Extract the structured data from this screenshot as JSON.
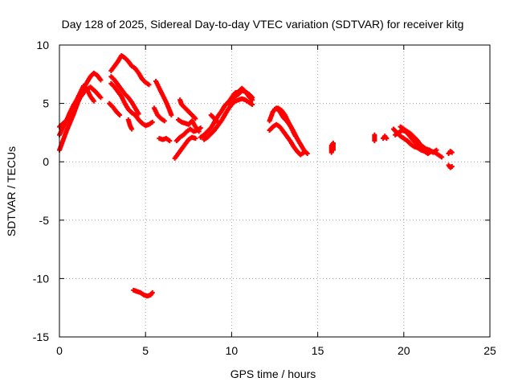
{
  "chart_data": {
    "type": "scatter",
    "title": "Day 128 of 2025, Sidereal Day-to-day VTEC variation (SDTVAR) for receiver kitg",
    "xlabel": "GPS time / hours",
    "ylabel": "SDTVAR / TECUs",
    "xlim": [
      0,
      25
    ],
    "ylim": [
      -15,
      10
    ],
    "x_ticks": [
      0,
      5,
      10,
      15,
      20,
      25
    ],
    "y_ticks": [
      -15,
      -10,
      -5,
      0,
      5,
      10
    ],
    "x_tick_labels": [
      "0",
      "5",
      "10",
      "15",
      "20",
      "25"
    ],
    "y_tick_labels": [
      "-15",
      "-10",
      "-5",
      "0",
      "5",
      "10"
    ],
    "grid": true,
    "marker": "plus",
    "series_color": "#ff0000",
    "series": [
      {
        "name": "SDTVAR",
        "segments": [
          [
            [
              0.0,
              1.0
            ],
            [
              0.2,
              1.8
            ],
            [
              0.4,
              2.6
            ],
            [
              0.6,
              3.3
            ],
            [
              0.8,
              4.0
            ],
            [
              1.0,
              4.8
            ],
            [
              1.2,
              5.6
            ],
            [
              1.4,
              6.3
            ],
            [
              1.6,
              6.8
            ],
            [
              1.8,
              7.3
            ],
            [
              2.0,
              7.6
            ],
            [
              2.2,
              7.4
            ],
            [
              2.4,
              7.0
            ]
          ],
          [
            [
              0.0,
              2.3
            ],
            [
              0.2,
              2.9
            ],
            [
              0.4,
              3.5
            ],
            [
              0.6,
              4.2
            ],
            [
              0.8,
              4.8
            ],
            [
              1.0,
              5.3
            ],
            [
              1.2,
              5.9
            ],
            [
              1.4,
              6.5
            ],
            [
              1.6,
              6.2
            ],
            [
              1.8,
              5.6
            ],
            [
              2.0,
              5.2
            ]
          ],
          [
            [
              0.0,
              3.0
            ],
            [
              0.3,
              3.4
            ],
            [
              0.6,
              3.8
            ],
            [
              0.9,
              4.6
            ],
            [
              1.2,
              5.5
            ],
            [
              1.5,
              6.1
            ],
            [
              1.8,
              6.4
            ],
            [
              2.1,
              6.0
            ],
            [
              2.4,
              5.5
            ]
          ],
          [
            [
              3.0,
              7.8
            ],
            [
              3.2,
              8.2
            ],
            [
              3.4,
              8.6
            ],
            [
              3.6,
              9.1
            ],
            [
              3.8,
              8.9
            ],
            [
              4.0,
              8.6
            ],
            [
              4.2,
              8.2
            ],
            [
              4.4,
              8.0
            ],
            [
              4.6,
              7.6
            ],
            [
              4.8,
              7.1
            ],
            [
              5.0,
              6.8
            ],
            [
              5.2,
              6.6
            ]
          ],
          [
            [
              3.0,
              7.3
            ],
            [
              3.2,
              7.0
            ],
            [
              3.4,
              6.6
            ],
            [
              3.6,
              6.2
            ],
            [
              3.8,
              5.8
            ],
            [
              4.0,
              5.5
            ],
            [
              4.2,
              5.1
            ],
            [
              4.4,
              4.6
            ],
            [
              4.6,
              4.1
            ]
          ],
          [
            [
              3.0,
              6.7
            ],
            [
              3.2,
              6.4
            ],
            [
              3.4,
              6.0
            ],
            [
              3.6,
              5.6
            ],
            [
              3.8,
              5.0
            ],
            [
              4.0,
              4.5
            ],
            [
              4.2,
              4.2
            ],
            [
              4.4,
              4.0
            ],
            [
              4.6,
              3.6
            ],
            [
              4.8,
              3.3
            ],
            [
              5.0,
              3.1
            ],
            [
              5.2,
              3.2
            ],
            [
              5.4,
              3.4
            ]
          ],
          [
            [
              2.9,
              5.0
            ],
            [
              3.1,
              4.7
            ],
            [
              3.3,
              4.3
            ],
            [
              3.5,
              4.0
            ]
          ],
          [
            [
              4.0,
              3.6
            ],
            [
              4.1,
              3.1
            ],
            [
              4.2,
              2.8
            ]
          ],
          [
            [
              5.6,
              6.9
            ],
            [
              5.8,
              6.3
            ],
            [
              6.0,
              5.7
            ],
            [
              6.2,
              5.1
            ],
            [
              6.4,
              4.4
            ],
            [
              6.5,
              4.0
            ]
          ],
          [
            [
              5.5,
              4.6
            ],
            [
              5.7,
              4.0
            ],
            [
              5.9,
              3.7
            ],
            [
              6.1,
              3.5
            ]
          ],
          [
            [
              5.8,
              2.0
            ],
            [
              6.0,
              1.9
            ],
            [
              6.2,
              2.0
            ],
            [
              6.4,
              1.8
            ]
          ],
          [
            [
              6.7,
              0.3
            ],
            [
              6.9,
              0.7
            ],
            [
              7.1,
              1.1
            ],
            [
              7.3,
              1.5
            ],
            [
              7.5,
              1.9
            ],
            [
              7.7,
              2.1
            ],
            [
              7.9,
              2.0
            ]
          ],
          [
            [
              6.8,
              1.8
            ],
            [
              7.0,
              2.1
            ],
            [
              7.2,
              2.3
            ],
            [
              7.4,
              2.6
            ],
            [
              7.6,
              2.8
            ],
            [
              7.8,
              2.6
            ],
            [
              8.0,
              2.7
            ],
            [
              8.2,
              2.9
            ]
          ],
          [
            [
              6.9,
              3.6
            ],
            [
              7.1,
              3.4
            ],
            [
              7.3,
              3.3
            ],
            [
              7.5,
              3.2
            ],
            [
              7.7,
              3.5
            ],
            [
              7.9,
              3.0
            ],
            [
              8.1,
              2.6
            ]
          ],
          [
            [
              8.2,
              2.1
            ],
            [
              8.4,
              2.3
            ],
            [
              8.6,
              2.6
            ],
            [
              8.8,
              2.9
            ],
            [
              9.0,
              3.4
            ],
            [
              9.2,
              3.9
            ],
            [
              9.4,
              4.3
            ],
            [
              9.6,
              4.8
            ],
            [
              9.8,
              5.1
            ],
            [
              10.0,
              5.4
            ],
            [
              10.2,
              5.6
            ],
            [
              10.4,
              5.8
            ],
            [
              10.6,
              6.1
            ],
            [
              10.8,
              6.0
            ],
            [
              11.0,
              5.8
            ],
            [
              11.2,
              5.5
            ]
          ],
          [
            [
              8.4,
              1.9
            ],
            [
              8.6,
              2.1
            ],
            [
              8.8,
              2.4
            ],
            [
              9.0,
              2.7
            ],
            [
              9.2,
              3.1
            ],
            [
              9.4,
              3.5
            ],
            [
              9.6,
              4.0
            ],
            [
              9.8,
              4.5
            ],
            [
              10.0,
              4.9
            ],
            [
              10.2,
              5.2
            ],
            [
              10.4,
              5.3
            ],
            [
              10.6,
              5.4
            ],
            [
              10.8,
              5.3
            ],
            [
              11.0,
              5.1
            ],
            [
              11.2,
              4.9
            ]
          ],
          [
            [
              9.8,
              5.0
            ],
            [
              10.0,
              5.5
            ],
            [
              10.2,
              5.9
            ],
            [
              10.4,
              6.0
            ],
            [
              10.6,
              6.3
            ],
            [
              10.8,
              6.0
            ],
            [
              11.0,
              5.6
            ],
            [
              11.2,
              5.3
            ]
          ],
          [
            [
              7.0,
              5.3
            ],
            [
              7.1,
              4.9
            ],
            [
              7.3,
              4.6
            ],
            [
              7.5,
              4.3
            ],
            [
              7.7,
              4.0
            ],
            [
              7.9,
              3.7
            ]
          ],
          [
            [
              8.8,
              4.0
            ],
            [
              9.0,
              3.7
            ],
            [
              9.2,
              3.4
            ]
          ],
          [
            [
              12.2,
              3.5
            ],
            [
              12.4,
              4.3
            ],
            [
              12.6,
              4.6
            ],
            [
              12.8,
              4.3
            ],
            [
              13.0,
              3.8
            ],
            [
              13.2,
              3.5
            ],
            [
              13.4,
              3.1
            ],
            [
              13.6,
              2.6
            ],
            [
              13.8,
              2.0
            ],
            [
              14.0,
              1.5
            ],
            [
              14.2,
              1.0
            ],
            [
              14.4,
              0.7
            ]
          ],
          [
            [
              12.2,
              2.7
            ],
            [
              12.4,
              3.0
            ],
            [
              12.6,
              3.2
            ],
            [
              12.8,
              3.0
            ],
            [
              13.0,
              2.6
            ],
            [
              13.2,
              2.2
            ],
            [
              13.4,
              1.8
            ],
            [
              13.6,
              1.3
            ],
            [
              13.8,
              0.9
            ],
            [
              14.0,
              0.6
            ],
            [
              14.2,
              0.8
            ]
          ],
          [
            [
              12.5,
              4.5
            ],
            [
              12.7,
              4.6
            ],
            [
              12.9,
              4.4
            ],
            [
              13.1,
              4.0
            ],
            [
              13.3,
              3.4
            ],
            [
              13.5,
              2.8
            ],
            [
              13.7,
              2.2
            ]
          ],
          [
            [
              15.8,
              0.8
            ],
            [
              15.8,
              1.0
            ],
            [
              15.8,
              1.2
            ],
            [
              15.8,
              1.4
            ],
            [
              15.9,
              1.6
            ],
            [
              15.9,
              1.3
            ],
            [
              15.9,
              1.0
            ]
          ],
          [
            [
              18.3,
              1.8
            ],
            [
              18.3,
              2.1
            ],
            [
              18.3,
              2.3
            ]
          ],
          [
            [
              18.8,
              2.0
            ],
            [
              18.9,
              2.2
            ],
            [
              19.0,
              2.0
            ]
          ],
          [
            [
              19.4,
              2.8
            ],
            [
              19.6,
              2.5
            ],
            [
              19.8,
              2.2
            ],
            [
              20.0,
              2.0
            ],
            [
              20.2,
              1.8
            ],
            [
              20.4,
              1.5
            ],
            [
              20.6,
              1.3
            ],
            [
              20.8,
              1.2
            ],
            [
              21.0,
              1.0
            ],
            [
              21.2,
              0.9
            ],
            [
              21.4,
              0.7
            ],
            [
              21.6,
              0.9
            ],
            [
              21.8,
              0.8
            ],
            [
              22.0,
              0.6
            ],
            [
              22.2,
              0.4
            ]
          ],
          [
            [
              19.5,
              2.3
            ],
            [
              19.7,
              2.5
            ],
            [
              19.9,
              2.7
            ],
            [
              20.1,
              2.6
            ],
            [
              20.3,
              2.3
            ],
            [
              20.5,
              1.9
            ],
            [
              20.7,
              1.6
            ],
            [
              20.9,
              1.3
            ],
            [
              21.1,
              1.2
            ],
            [
              21.3,
              1.1
            ],
            [
              21.5,
              1.0
            ],
            [
              21.7,
              0.8
            ],
            [
              21.9,
              1.0
            ]
          ],
          [
            [
              19.8,
              3.0
            ],
            [
              20.0,
              2.8
            ],
            [
              20.2,
              2.6
            ],
            [
              20.4,
              2.4
            ],
            [
              20.6,
              2.1
            ],
            [
              20.8,
              1.8
            ],
            [
              21.0,
              1.4
            ],
            [
              21.2,
              1.2
            ]
          ],
          [
            [
              22.6,
              0.7
            ],
            [
              22.7,
              0.9
            ],
            [
              22.8,
              0.8
            ]
          ],
          [
            [
              22.6,
              -0.3
            ],
            [
              22.7,
              -0.5
            ],
            [
              22.8,
              -0.4
            ]
          ],
          [
            [
              4.3,
              -11.0
            ],
            [
              4.5,
              -11.1
            ],
            [
              4.7,
              -11.2
            ],
            [
              4.9,
              -11.4
            ],
            [
              5.1,
              -11.5
            ],
            [
              5.3,
              -11.4
            ],
            [
              5.4,
              -11.2
            ]
          ]
        ]
      }
    ]
  }
}
